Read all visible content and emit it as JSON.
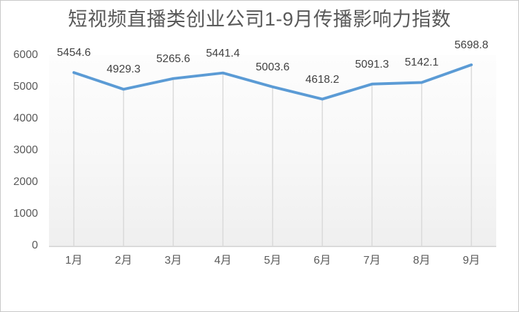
{
  "chart_data": {
    "type": "line",
    "title": "短视频直播类创业公司1-9月传播影响力指数",
    "categories": [
      "1月",
      "2月",
      "3月",
      "4月",
      "5月",
      "6月",
      "7月",
      "8月",
      "9月"
    ],
    "values": [
      5454.6,
      4929.3,
      5265.6,
      5441.4,
      5003.6,
      4618.2,
      5091.3,
      5142.1,
      5698.8
    ],
    "data_label_texts": [
      "5454.6",
      "4929.3",
      "5265.6",
      "5441.4",
      "5003.6",
      "4618.2",
      "5091.3",
      "5142.1",
      "5698.8"
    ],
    "ylim": [
      0,
      6000
    ],
    "ytick_interval": 1000,
    "yticks": [
      "0",
      "1000",
      "2000",
      "3000",
      "4000",
      "5000",
      "6000"
    ],
    "xlabel": "",
    "ylabel": "",
    "legend": "none",
    "grid": "vertical-drop-lines-only",
    "data_labels_position": "above",
    "line_color": "#5B9BD5",
    "drop_line_color": "#D9D9D9",
    "axis_line_color": "#D9D9D9",
    "title_color": "#595959",
    "axis_label_color": "#595959",
    "data_label_color": "#404040"
  }
}
